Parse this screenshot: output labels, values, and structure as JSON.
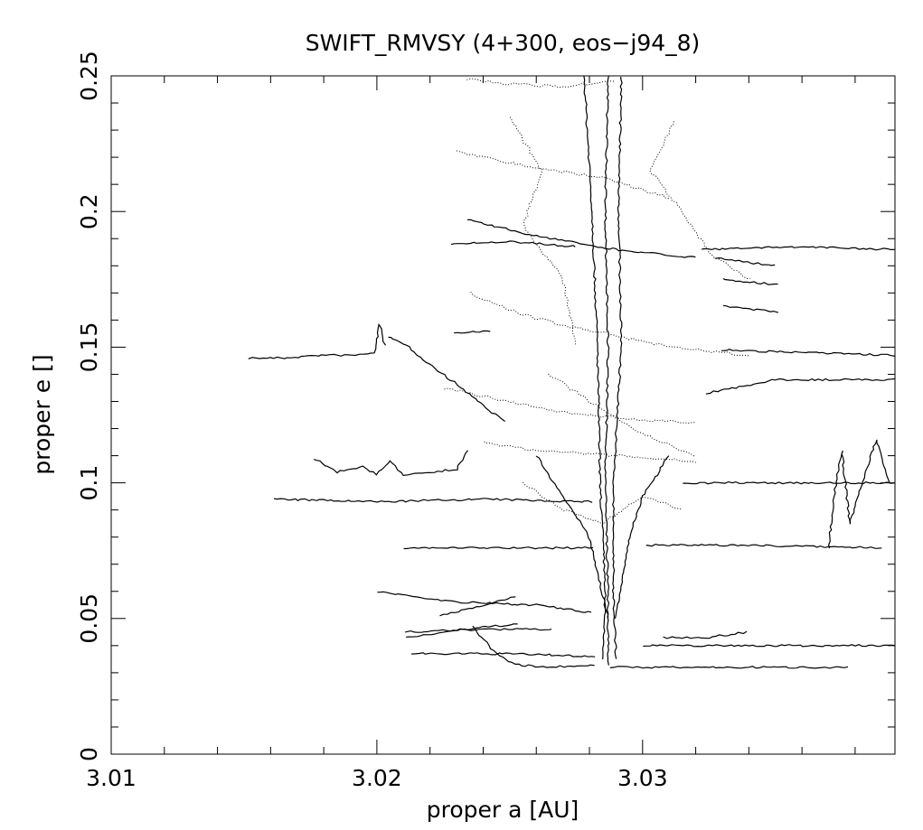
{
  "chart_data": {
    "type": "scatter",
    "title": "SWIFT_RMVSY (4+300, eos−j94_8)",
    "xlabel": "proper a [AU]",
    "ylabel": "proper e []",
    "xlim": [
      3.01,
      3.0395
    ],
    "ylim": [
      0,
      0.25
    ],
    "x_ticks": [
      {
        "value": 3.01,
        "label": "3.01"
      },
      {
        "value": 3.02,
        "label": "3.02"
      },
      {
        "value": 3.03,
        "label": "3.03"
      }
    ],
    "y_ticks": [
      {
        "value": 0,
        "label": "0"
      },
      {
        "value": 0.05,
        "label": "0.05"
      },
      {
        "value": 0.1,
        "label": "0.1"
      },
      {
        "value": 0.15,
        "label": "0.15"
      },
      {
        "value": 0.2,
        "label": "0.2"
      },
      {
        "value": 0.25,
        "label": "0.25"
      }
    ],
    "grid": false,
    "series": [
      {
        "values": [
          [
            3.0152,
            0.146
          ],
          [
            3.0165,
            0.146
          ],
          [
            3.0178,
            0.147
          ],
          [
            3.0192,
            0.147
          ],
          [
            3.0199,
            0.148
          ],
          [
            3.0201,
            0.158
          ],
          [
            3.0203,
            0.151
          ]
        ]
      },
      {
        "values": [
          [
            3.0204,
            0.154
          ],
          [
            3.0212,
            0.15
          ],
          [
            3.0221,
            0.143
          ],
          [
            3.0229,
            0.137
          ],
          [
            3.0237,
            0.131
          ],
          [
            3.0243,
            0.126
          ],
          [
            3.0248,
            0.123
          ]
        ]
      },
      {
        "values": [
          [
            3.0229,
            0.155
          ],
          [
            3.0243,
            0.156
          ]
        ]
      },
      {
        "values": [
          [
            3.0176,
            0.109
          ],
          [
            3.0185,
            0.104
          ],
          [
            3.0195,
            0.106
          ],
          [
            3.02,
            0.103
          ],
          [
            3.0205,
            0.108
          ],
          [
            3.021,
            0.103
          ],
          [
            3.022,
            0.104
          ],
          [
            3.023,
            0.105
          ],
          [
            3.0234,
            0.112
          ]
        ]
      },
      {
        "values": [
          [
            3.0161,
            0.094
          ],
          [
            3.02,
            0.093
          ],
          [
            3.024,
            0.094
          ],
          [
            3.0281,
            0.093
          ]
        ]
      },
      {
        "values": [
          [
            3.021,
            0.076
          ],
          [
            3.025,
            0.076
          ],
          [
            3.0281,
            0.076
          ]
        ]
      },
      {
        "values": [
          [
            3.02,
            0.06
          ],
          [
            3.023,
            0.056
          ],
          [
            3.026,
            0.055
          ],
          [
            3.0281,
            0.052
          ]
        ]
      },
      {
        "values": [
          [
            3.0224,
            0.051
          ],
          [
            3.0252,
            0.058
          ]
        ]
      },
      {
        "values": [
          [
            3.0211,
            0.045
          ],
          [
            3.024,
            0.046
          ],
          [
            3.0266,
            0.046
          ]
        ]
      },
      {
        "values": [
          [
            3.0211,
            0.043
          ],
          [
            3.0233,
            0.046
          ],
          [
            3.0253,
            0.048
          ]
        ]
      },
      {
        "values": [
          [
            3.0213,
            0.037
          ],
          [
            3.025,
            0.037
          ],
          [
            3.0282,
            0.036
          ]
        ]
      },
      {
        "values": [
          [
            3.0236,
            0.047
          ],
          [
            3.0244,
            0.038
          ],
          [
            3.0252,
            0.033
          ],
          [
            3.0265,
            0.032
          ],
          [
            3.0282,
            0.033
          ]
        ]
      },
      {
        "values": [
          [
            3.0288,
            0.032
          ],
          [
            3.031,
            0.032
          ],
          [
            3.034,
            0.032
          ],
          [
            3.0377,
            0.032
          ]
        ]
      },
      {
        "values": [
          [
            3.03,
            0.04
          ],
          [
            3.034,
            0.04
          ],
          [
            3.0395,
            0.04
          ]
        ]
      },
      {
        "values": [
          [
            3.0308,
            0.043
          ],
          [
            3.0325,
            0.043
          ],
          [
            3.0339,
            0.045
          ]
        ]
      },
      {
        "values": [
          [
            3.0301,
            0.077
          ],
          [
            3.034,
            0.077
          ],
          [
            3.039,
            0.076
          ]
        ]
      },
      {
        "values": [
          [
            3.0315,
            0.1
          ],
          [
            3.035,
            0.1
          ],
          [
            3.0395,
            0.1
          ]
        ]
      },
      {
        "values": [
          [
            3.037,
            0.076
          ],
          [
            3.0372,
            0.095
          ],
          [
            3.0375,
            0.112
          ],
          [
            3.0378,
            0.085
          ],
          [
            3.0382,
            0.098
          ],
          [
            3.0388,
            0.116
          ],
          [
            3.0393,
            0.1
          ]
        ]
      },
      {
        "values": [
          [
            3.0324,
            0.133
          ],
          [
            3.035,
            0.138
          ],
          [
            3.0395,
            0.138
          ]
        ]
      },
      {
        "values": [
          [
            3.033,
            0.149
          ],
          [
            3.036,
            0.148
          ],
          [
            3.0395,
            0.147
          ]
        ]
      },
      {
        "values": [
          [
            3.033,
            0.165
          ],
          [
            3.0351,
            0.163
          ]
        ]
      },
      {
        "values": [
          [
            3.033,
            0.175
          ],
          [
            3.0351,
            0.173
          ]
        ]
      },
      {
        "values": [
          [
            3.0327,
            0.183
          ],
          [
            3.035,
            0.18
          ]
        ]
      },
      {
        "values": [
          [
            3.0322,
            0.186
          ],
          [
            3.036,
            0.187
          ],
          [
            3.0395,
            0.186
          ]
        ]
      },
      {
        "values": [
          [
            3.0234,
            0.197
          ],
          [
            3.026,
            0.191
          ],
          [
            3.029,
            0.186
          ],
          [
            3.032,
            0.183
          ]
        ]
      },
      {
        "values": [
          [
            3.0228,
            0.188
          ],
          [
            3.025,
            0.189
          ],
          [
            3.0275,
            0.187
          ]
        ]
      },
      {
        "values": [
          [
            3.0278,
            0.25
          ],
          [
            3.0281,
            0.2
          ],
          [
            3.0283,
            0.15
          ],
          [
            3.0284,
            0.1
          ],
          [
            3.0286,
            0.06
          ],
          [
            3.0285,
            0.035
          ]
        ]
      },
      {
        "values": [
          [
            3.0292,
            0.25
          ],
          [
            3.0291,
            0.2
          ],
          [
            3.0292,
            0.15
          ],
          [
            3.0289,
            0.1
          ],
          [
            3.0289,
            0.06
          ],
          [
            3.029,
            0.035
          ]
        ]
      },
      {
        "values": [
          [
            3.0287,
            0.25
          ],
          [
            3.0286,
            0.2
          ],
          [
            3.0287,
            0.15
          ],
          [
            3.0286,
            0.1
          ],
          [
            3.0287,
            0.06
          ],
          [
            3.0287,
            0.033
          ]
        ]
      },
      {
        "values": [
          [
            3.026,
            0.11
          ],
          [
            3.027,
            0.095
          ],
          [
            3.028,
            0.08
          ],
          [
            3.0287,
            0.05
          ]
        ]
      },
      {
        "values": [
          [
            3.031,
            0.11
          ],
          [
            3.03,
            0.095
          ],
          [
            3.0295,
            0.08
          ],
          [
            3.029,
            0.05
          ]
        ]
      }
    ],
    "dotted_series": [
      {
        "values": [
          [
            3.0234,
            0.249
          ],
          [
            3.025,
            0.247
          ],
          [
            3.027,
            0.246
          ],
          [
            3.029,
            0.248
          ]
        ]
      },
      {
        "values": [
          [
            3.025,
            0.235
          ],
          [
            3.0262,
            0.215
          ],
          [
            3.0255,
            0.195
          ],
          [
            3.027,
            0.175
          ],
          [
            3.0275,
            0.15
          ]
        ]
      },
      {
        "values": [
          [
            3.0312,
            0.233
          ],
          [
            3.0303,
            0.215
          ],
          [
            3.0315,
            0.2
          ],
          [
            3.0325,
            0.185
          ],
          [
            3.034,
            0.175
          ]
        ]
      },
      {
        "values": [
          [
            3.0235,
            0.17
          ],
          [
            3.0255,
            0.162
          ],
          [
            3.027,
            0.158
          ],
          [
            3.0287,
            0.155
          ],
          [
            3.031,
            0.15
          ],
          [
            3.034,
            0.147
          ]
        ]
      },
      {
        "values": [
          [
            3.0225,
            0.135
          ],
          [
            3.025,
            0.13
          ],
          [
            3.027,
            0.126
          ],
          [
            3.029,
            0.124
          ],
          [
            3.032,
            0.122
          ]
        ]
      },
      {
        "values": [
          [
            3.024,
            0.115
          ],
          [
            3.026,
            0.112
          ],
          [
            3.029,
            0.11
          ],
          [
            3.032,
            0.108
          ]
        ]
      },
      {
        "values": [
          [
            3.023,
            0.222
          ],
          [
            3.025,
            0.218
          ],
          [
            3.0287,
            0.212
          ],
          [
            3.031,
            0.205
          ]
        ]
      },
      {
        "values": [
          [
            3.0265,
            0.14
          ],
          [
            3.028,
            0.13
          ],
          [
            3.03,
            0.118
          ],
          [
            3.032,
            0.11
          ]
        ]
      },
      {
        "values": [
          [
            3.0255,
            0.1
          ],
          [
            3.027,
            0.09
          ],
          [
            3.0285,
            0.085
          ],
          [
            3.03,
            0.095
          ],
          [
            3.0315,
            0.09
          ]
        ]
      }
    ]
  }
}
